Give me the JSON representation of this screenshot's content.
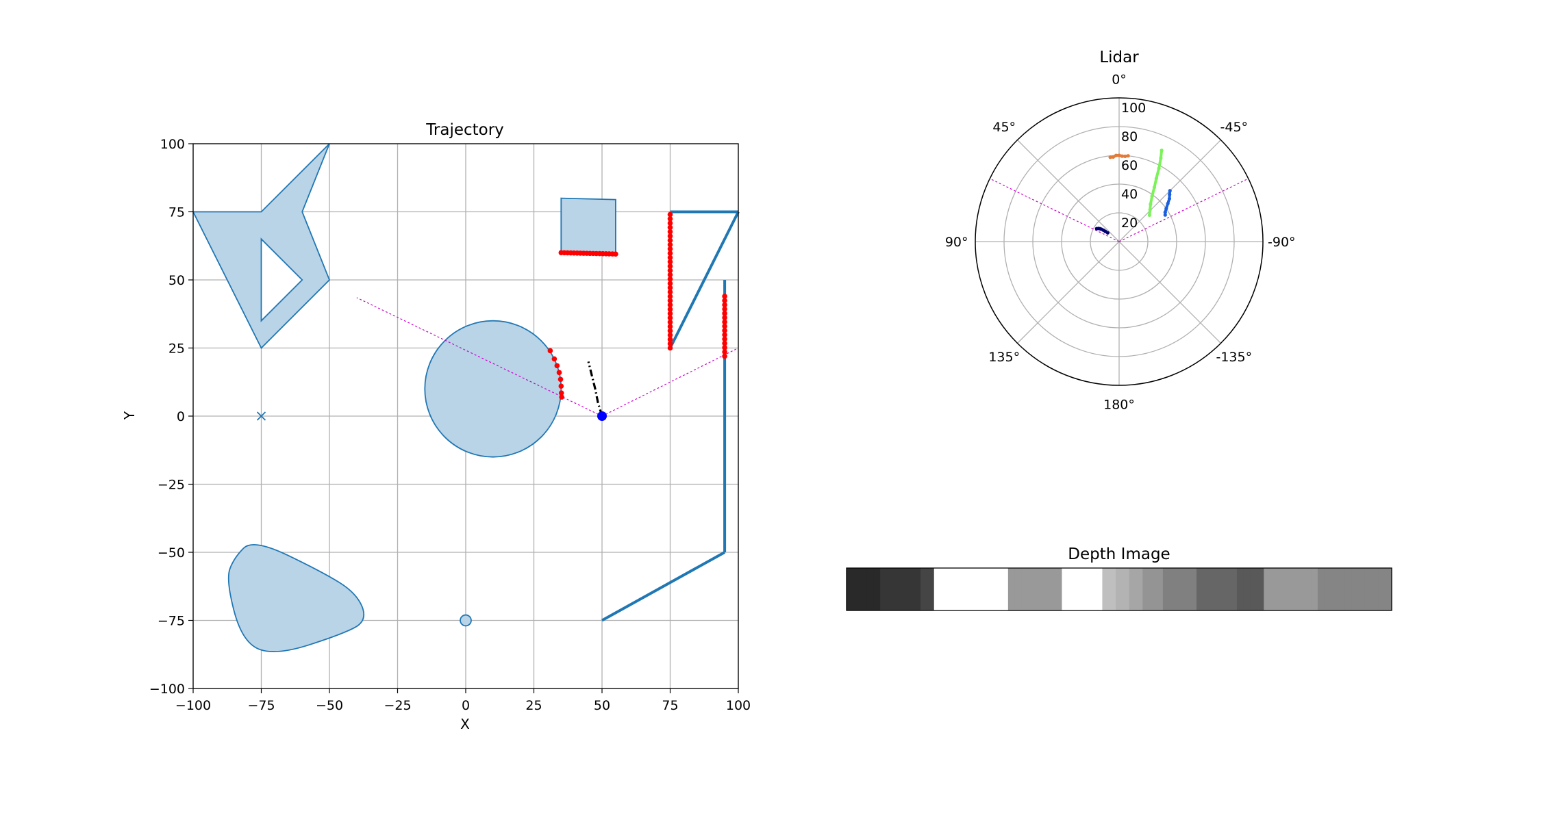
{
  "chart_data": [
    {
      "type": "scatter",
      "title": "Trajectory",
      "xlabel": "X",
      "ylabel": "Y",
      "xlim": [
        -100,
        100
      ],
      "ylim": [
        -100,
        100
      ],
      "grid": true,
      "xticks": [
        -100,
        -75,
        -50,
        -25,
        0,
        25,
        50,
        75,
        100
      ],
      "yticks": [
        -100,
        -75,
        -50,
        -25,
        0,
        25,
        50,
        75,
        100
      ],
      "xtick_labels": [
        "−100",
        "−75",
        "−50",
        "−25",
        "0",
        "25",
        "50",
        "75",
        "100"
      ],
      "ytick_labels": [
        "−100",
        "−75",
        "−50",
        "−25",
        "0",
        "25",
        "50",
        "75",
        "100"
      ],
      "colors": {
        "obstacle_fill": "#b9d3e7",
        "obstacle_edge": "#1f77b4",
        "wall": "#1f77b4",
        "hits": "#ff0000",
        "robot": "#0000ff",
        "fov": "#cc00cc",
        "path": "#000000",
        "grid": "#b0b0b0"
      },
      "obstacles": [
        {
          "kind": "polygon",
          "name": "star-shape",
          "points": [
            [
              -100,
              75
            ],
            [
              -75,
              75
            ],
            [
              -50,
              100
            ],
            [
              -60,
              75
            ],
            [
              -50,
              50
            ],
            [
              -75,
              25
            ]
          ]
        },
        {
          "kind": "hole",
          "name": "star-hole",
          "points": [
            [
              -75,
              65
            ],
            [
              -60,
              50
            ],
            [
              -75,
              35
            ]
          ]
        },
        {
          "kind": "polygon",
          "name": "square-obstacle",
          "points": [
            [
              35,
              80
            ],
            [
              55,
              79.5
            ],
            [
              55,
              59.5
            ],
            [
              35,
              60
            ]
          ]
        },
        {
          "kind": "circle",
          "name": "large-circle",
          "center": [
            10,
            10
          ],
          "r": 25
        },
        {
          "kind": "circle",
          "name": "small-circle",
          "center": [
            0,
            -75
          ],
          "r": 2
        },
        {
          "kind": "blob",
          "name": "rounded-triangle",
          "points": [
            [
              -85,
              -52
            ],
            [
              -78,
              -45
            ],
            [
              -53,
              -57
            ],
            [
              -40,
              -65
            ],
            [
              -36,
              -75
            ],
            [
              -45,
              -80
            ],
            [
              -70,
              -88
            ],
            [
              -82,
              -83
            ],
            [
              -88,
              -60
            ]
          ]
        }
      ],
      "walls": [
        {
          "name": "wall-top",
          "points": [
            [
              75,
              75
            ],
            [
              100,
              75
            ]
          ]
        },
        {
          "name": "wall-diagonal",
          "points": [
            [
              75,
              25
            ],
            [
              100,
              75
            ]
          ]
        },
        {
          "name": "wall-inner",
          "points": [
            [
              75,
              75
            ],
            [
              75,
              25
            ]
          ]
        },
        {
          "name": "wall-right",
          "points": [
            [
              95,
              50
            ],
            [
              95,
              -50
            ]
          ]
        },
        {
          "name": "wall-bottom-diagonal",
          "points": [
            [
              95,
              -50
            ],
            [
              50,
              -75
            ]
          ]
        }
      ],
      "goal_marker": {
        "x": -75,
        "y": 0
      },
      "robot": {
        "x": 50,
        "y": 0
      },
      "fov_lines": [
        {
          "from": [
            50,
            0
          ],
          "to": [
            -40,
            43.5
          ]
        },
        {
          "from": [
            50,
            0
          ],
          "to": [
            100,
            25
          ]
        }
      ],
      "path": [
        [
          50,
          0
        ],
        [
          48.5,
          5
        ],
        [
          47.5,
          10
        ],
        [
          46.5,
          14
        ],
        [
          45.5,
          18
        ],
        [
          45,
          20
        ]
      ],
      "hit_segments": [
        {
          "name": "hits-circle",
          "points": [
            [
              31,
              24
            ],
            [
              32.5,
              21
            ],
            [
              33.5,
              18.5
            ],
            [
              34.3,
              16
            ],
            [
              34.8,
              13.5
            ],
            [
              35,
              11
            ],
            [
              35.1,
              8.5
            ],
            [
              35.2,
              7
            ]
          ]
        },
        {
          "name": "hits-square",
          "from": [
            35,
            60
          ],
          "to": [
            55,
            59.5
          ],
          "count": 18
        },
        {
          "name": "hits-inner-wall",
          "from": [
            75,
            74
          ],
          "to": [
            75,
            25
          ],
          "count": 32
        },
        {
          "name": "hits-right-wall",
          "from": [
            95,
            44
          ],
          "to": [
            95,
            22
          ],
          "count": 15
        }
      ]
    },
    {
      "type": "scatter",
      "polar": true,
      "title": "Lidar",
      "rlim": [
        0,
        100
      ],
      "r_ticks": [
        20,
        40,
        60,
        80,
        100
      ],
      "r_tick_labels": [
        "20",
        "40",
        "60",
        "80",
        "100"
      ],
      "angle_labels": [
        "0°",
        "-45°",
        "-90°",
        "-135°",
        "180°",
        "135°",
        "90°",
        "45°"
      ],
      "angle_values": [
        0,
        -45,
        -90,
        -135,
        180,
        135,
        90,
        45
      ],
      "grid": true,
      "fov_angles": [
        64,
        -64
      ],
      "series": [
        {
          "color": "#000070",
          "points": [
            [
              60,
              18
            ],
            [
              57.5,
              17
            ],
            [
              56,
              16
            ],
            [
              55,
              15
            ],
            [
              54,
              13.5
            ],
            [
              53.5,
              12
            ],
            [
              52.5,
              10
            ]
          ]
        },
        {
          "color": "#e07b39",
          "points": [
            [
              6,
              59
            ],
            [
              4,
              59
            ],
            [
              2,
              60
            ],
            [
              0,
              60
            ],
            [
              -2,
              59.5
            ],
            [
              -4,
              59.5
            ],
            [
              -6,
              60
            ]
          ]
        },
        {
          "color": "#7cf25a",
          "points": [
            [
              -25,
              70
            ],
            [
              -26.5,
              65
            ],
            [
              -28.5,
              58
            ],
            [
              -30.5,
              51
            ],
            [
              -33,
              45
            ],
            [
              -36,
              39
            ],
            [
              -40,
              34
            ],
            [
              -44,
              31
            ],
            [
              -49,
              28
            ]
          ]
        },
        {
          "color": "#1a5fdc",
          "points": [
            [
              -45,
              50
            ],
            [
              -47,
              48
            ],
            [
              -49.5,
              46
            ],
            [
              -52,
              43
            ],
            [
              -55,
              40
            ],
            [
              -57.5,
              38
            ],
            [
              -60,
              37
            ]
          ]
        }
      ]
    },
    {
      "type": "heatmap",
      "title": "Depth Image",
      "values": [
        0.16,
        0.16,
        0.16,
        0.16,
        0.16,
        0.21,
        0.21,
        0.21,
        0.21,
        0.21,
        0.21,
        0.27,
        0.27,
        1,
        1,
        1,
        1,
        1,
        1,
        1,
        1,
        1,
        1,
        1,
        0.6,
        0.6,
        0.6,
        0.6,
        0.6,
        0.6,
        0.6,
        0.6,
        1,
        1,
        1,
        1,
        1,
        1,
        0.75,
        0.75,
        0.7,
        0.7,
        0.65,
        0.65,
        0.58,
        0.58,
        0.58,
        0.5,
        0.5,
        0.5,
        0.5,
        0.5,
        0.4,
        0.4,
        0.4,
        0.4,
        0.4,
        0.4,
        0.35,
        0.35,
        0.35,
        0.35,
        0.6,
        0.6,
        0.6,
        0.6,
        0.6,
        0.6,
        0.6,
        0.6,
        0.52,
        0.52,
        0.52,
        0.52,
        0.52,
        0.52,
        0.52,
        0.52,
        0.52,
        0.52,
        0.52
      ]
    }
  ]
}
